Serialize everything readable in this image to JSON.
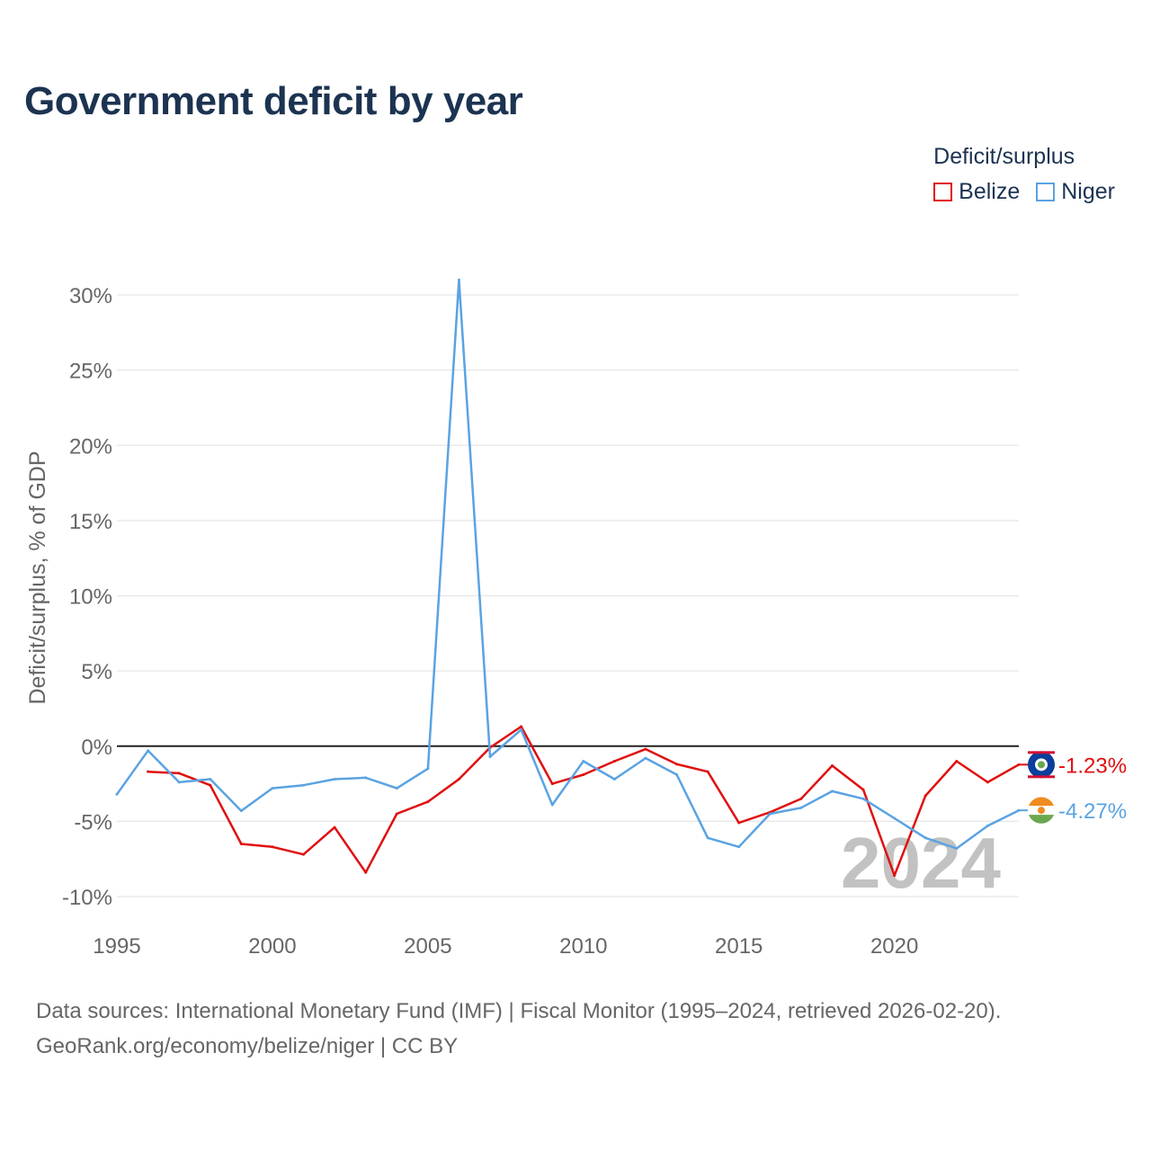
{
  "title": "Government deficit by year",
  "legend": {
    "title": "Deficit/surplus",
    "items": [
      {
        "name": "Belize",
        "color": "#e01010"
      },
      {
        "name": "Niger",
        "color": "#5aa3e2"
      }
    ]
  },
  "chart_data": {
    "type": "line",
    "title": "Government deficit by year",
    "xlabel": "",
    "ylabel": "Deficit/surplus, % of GDP",
    "xlim": [
      1995,
      2024
    ],
    "ylim": [
      -10,
      30
    ],
    "x_ticks": [
      1995,
      2000,
      2005,
      2010,
      2015,
      2020
    ],
    "y_ticks": [
      -10,
      -5,
      0,
      5,
      10,
      15,
      20,
      25,
      30
    ],
    "y_tick_labels": [
      "-10%",
      "-5%",
      "0%",
      "5%",
      "10%",
      "15%",
      "20%",
      "25%",
      "30%"
    ],
    "grid": true,
    "legend_position": "top-right",
    "year_watermark": "2024",
    "series": [
      {
        "name": "Belize",
        "color": "#e01010",
        "x": [
          1996,
          1997,
          1998,
          1999,
          2000,
          2001,
          2002,
          2003,
          2004,
          2005,
          2006,
          2007,
          2008,
          2009,
          2010,
          2011,
          2012,
          2013,
          2014,
          2015,
          2016,
          2017,
          2018,
          2019,
          2020,
          2021,
          2022,
          2023,
          2024
        ],
        "values": [
          -1.7,
          -1.8,
          -2.6,
          -6.5,
          -6.7,
          -7.2,
          -5.4,
          -8.4,
          -4.5,
          -3.7,
          -2.2,
          -0.1,
          1.3,
          -2.5,
          -1.9,
          -1.0,
          -0.2,
          -1.2,
          -1.7,
          -5.1,
          -4.4,
          -3.5,
          -1.3,
          -2.9,
          -8.6,
          -3.3,
          -1.0,
          -2.4,
          -1.23
        ],
        "end_label": "-1.23%"
      },
      {
        "name": "Niger",
        "color": "#5aa3e2",
        "x": [
          1995,
          1996,
          1997,
          1998,
          1999,
          2000,
          2001,
          2002,
          2003,
          2004,
          2005,
          2006,
          2007,
          2008,
          2009,
          2010,
          2011,
          2012,
          2013,
          2014,
          2015,
          2016,
          2017,
          2018,
          2019,
          2020,
          2021,
          2022,
          2023,
          2024
        ],
        "values": [
          -3.2,
          -0.3,
          -2.4,
          -2.2,
          -4.3,
          -2.8,
          -2.6,
          -2.2,
          -2.1,
          -2.8,
          -1.5,
          31.0,
          -0.7,
          1.1,
          -3.9,
          -1.0,
          -2.2,
          -0.8,
          -1.9,
          -6.1,
          -6.7,
          -4.5,
          -4.1,
          -3.0,
          -3.5,
          -4.8,
          -6.1,
          -6.8,
          -5.3,
          -4.27
        ],
        "end_label": "-4.27%"
      }
    ]
  },
  "source": {
    "line1": "Data sources: International Monetary Fund (IMF) | Fiscal Monitor (1995–2024, retrieved 2026-02-20).",
    "line2": "GeoRank.org/economy/belize/niger | CC BY"
  }
}
